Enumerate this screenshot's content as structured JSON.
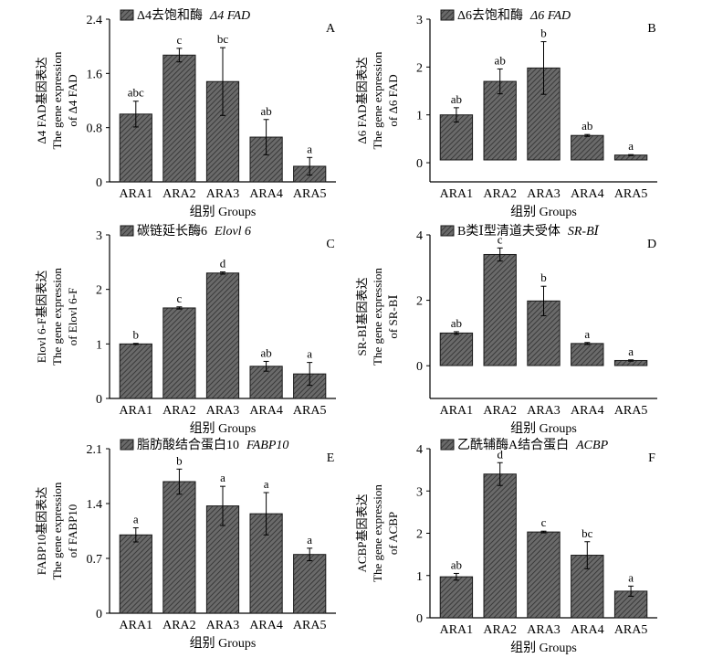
{
  "chart_data": [
    {
      "panel": "A",
      "type": "bar",
      "legend": {
        "cn": "Δ4去饱和酶",
        "gene": "Δ4 FAD"
      },
      "ylabel": {
        "line1": "Δ4 FAD基因表达",
        "line2": "The gene expression",
        "line3": "of  Δ4 FAD"
      },
      "xlabel": "组别  Groups",
      "categories": [
        "ARA1",
        "ARA2",
        "ARA3",
        "ARA4",
        "ARA5"
      ],
      "values": [
        1.0,
        1.87,
        1.48,
        0.66,
        0.23
      ],
      "errors": [
        0.19,
        0.1,
        0.5,
        0.26,
        0.13
      ],
      "letters": [
        "abc",
        "c",
        "bc",
        "ab",
        "a"
      ],
      "ylim": [
        0,
        2.4
      ],
      "yticks": [
        "0",
        "0.8",
        "1.6",
        "2.4"
      ]
    },
    {
      "panel": "B",
      "type": "bar",
      "legend": {
        "cn": "Δ6去饱和酶",
        "gene": "Δ6 FAD"
      },
      "ylabel": {
        "line1": "Δ6 FAD基因表达",
        "line2": "The gene expression",
        "line3": "of  Δ6 FAD"
      },
      "xlabel": "组别  Groups",
      "categories": [
        "ARA1",
        "ARA2",
        "ARA3",
        "ARA4",
        "ARA5"
      ],
      "values": [
        1.0,
        1.7,
        1.98,
        0.57,
        0.16
      ],
      "errors": [
        0.15,
        0.26,
        0.55,
        0.02,
        0.01
      ],
      "letters": [
        "ab",
        "ab",
        "b",
        "ab",
        "a"
      ],
      "ylim": [
        -0.4,
        3
      ],
      "yticks": [
        "0",
        "1",
        "2",
        "3"
      ]
    },
    {
      "panel": "C",
      "type": "bar",
      "legend": {
        "cn": "碳链延长酶6",
        "gene": "Elovl 6"
      },
      "ylabel": {
        "line1": "Elovl 6-F基因表达",
        "line2": "The gene expression",
        "line3": "of  Elovl 6-F"
      },
      "xlabel": "组别  Groups",
      "categories": [
        "ARA1",
        "ARA2",
        "ARA3",
        "ARA4",
        "ARA5"
      ],
      "values": [
        1.0,
        1.66,
        2.3,
        0.59,
        0.45
      ],
      "errors": [
        0.01,
        0.02,
        0.02,
        0.09,
        0.21
      ],
      "letters": [
        "b",
        "c",
        "d",
        "ab",
        "a"
      ],
      "ylim": [
        0,
        3
      ],
      "yticks": [
        "0",
        "1",
        "2",
        "3"
      ]
    },
    {
      "panel": "D",
      "type": "bar",
      "legend": {
        "cn": "B类Ⅰ型清道夫受体",
        "gene": "SR-BⅠ"
      },
      "ylabel": {
        "line1": "SR-BⅠ基因表达",
        "line2": "The gene expression",
        "line3": "of  SR-BⅠ"
      },
      "xlabel": "组别  Groups",
      "categories": [
        "ARA1",
        "ARA2",
        "ARA3",
        "ARA4",
        "ARA5"
      ],
      "values": [
        1.0,
        3.4,
        1.98,
        0.68,
        0.16
      ],
      "errors": [
        0.04,
        0.2,
        0.45,
        0.03,
        0.02
      ],
      "letters": [
        "ab",
        "c",
        "b",
        "a",
        "a"
      ],
      "ylim": [
        -1,
        4
      ],
      "yticks": [
        "0",
        "2",
        "4"
      ]
    },
    {
      "panel": "E",
      "type": "bar",
      "legend": {
        "cn": "脂肪酸结合蛋白10",
        "gene": "FABP10"
      },
      "ylabel": {
        "line1": "FABP10基因表达",
        "line2": "The gene expression",
        "line3": "of  FABP10"
      },
      "xlabel": "组别  Groups",
      "categories": [
        "ARA1",
        "ARA2",
        "ARA3",
        "ARA4",
        "ARA5"
      ],
      "values": [
        1.0,
        1.68,
        1.37,
        1.27,
        0.75
      ],
      "errors": [
        0.09,
        0.16,
        0.25,
        0.27,
        0.08
      ],
      "letters": [
        "a",
        "b",
        "a",
        "a",
        "a"
      ],
      "ylim": [
        0,
        2.1
      ],
      "yticks": [
        "0",
        "0.7",
        "1.4",
        "2.1"
      ]
    },
    {
      "panel": "F",
      "type": "bar",
      "legend": {
        "cn": "乙酰辅酶A结合蛋白",
        "gene": "ACBP"
      },
      "ylabel": {
        "line1": "ACBP基因表达",
        "line2": "The gene expression",
        "line3": "of  ACBP"
      },
      "xlabel": "组别  Groups",
      "categories": [
        "ARA1",
        "ARA2",
        "ARA3",
        "ARA4",
        "ARA5"
      ],
      "values": [
        0.97,
        3.4,
        2.03,
        1.48,
        0.63
      ],
      "errors": [
        0.08,
        0.27,
        0.02,
        0.32,
        0.12
      ],
      "letters": [
        "ab",
        "d",
        "c",
        "bc",
        "a"
      ],
      "ylim": [
        0,
        4
      ],
      "yticks": [
        "0",
        "1",
        "2",
        "3",
        "4"
      ]
    }
  ]
}
